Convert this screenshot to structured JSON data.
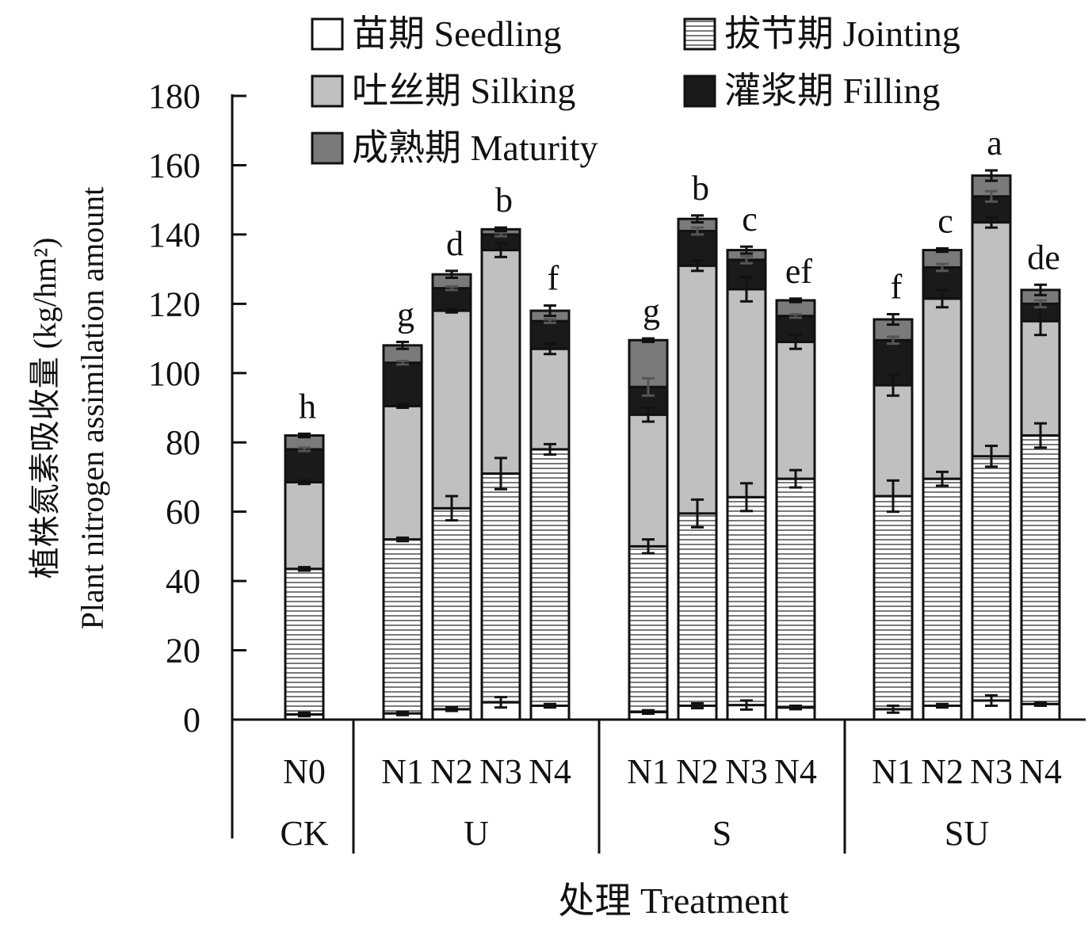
{
  "chart_data": {
    "type": "bar",
    "stacked": true,
    "ylabel_cn": "植株氮素吸收量 (kg/hm²)",
    "ylabel_en": "Plant nitrogen assimilation amount",
    "xlabel": "处理 Treatment",
    "ylim": [
      0,
      180
    ],
    "yticks": [
      "0",
      "20",
      "40",
      "60",
      "80",
      "100",
      "120",
      "140",
      "160",
      "180"
    ],
    "groups": [
      {
        "label": "CK",
        "categories": [
          "N0"
        ]
      },
      {
        "label": "U",
        "categories": [
          "N1",
          "N2",
          "N3",
          "N4"
        ]
      },
      {
        "label": "S",
        "categories": [
          "N1",
          "N2",
          "N3",
          "N4"
        ]
      },
      {
        "label": "SU",
        "categories": [
          "N1",
          "N2",
          "N3",
          "N4"
        ]
      }
    ],
    "legend": [
      {
        "label": "苗期 Seedling",
        "color": "#ffffff",
        "pattern": "none"
      },
      {
        "label": "拔节期 Jointing",
        "color": "#ffffff",
        "pattern": "hlines"
      },
      {
        "label": "吐丝期 Silking",
        "color": "#c0c0c0",
        "pattern": "none"
      },
      {
        "label": "灌浆期 Filling",
        "color": "#1a1a1a",
        "pattern": "none"
      },
      {
        "label": "成熟期 Maturity",
        "color": "#7a7a7a",
        "pattern": "none"
      }
    ],
    "series": [
      {
        "name": "Seedling",
        "values": [
          1.5,
          1.8,
          3.0,
          5.0,
          4.0,
          2.2,
          4.0,
          4.2,
          3.5,
          3.0,
          4.0,
          5.5,
          4.5
        ]
      },
      {
        "name": "Jointing",
        "values": [
          42.0,
          50.2,
          58.0,
          66.0,
          74.0,
          47.8,
          55.5,
          60.0,
          66.0,
          61.5,
          65.5,
          70.5,
          77.5
        ]
      },
      {
        "name": "Silking",
        "values": [
          25.0,
          38.5,
          57.0,
          64.5,
          29.0,
          38.0,
          71.5,
          60.0,
          39.5,
          32.0,
          52.0,
          67.5,
          33.0
        ]
      },
      {
        "name": "Filling",
        "values": [
          9.5,
          12.5,
          6.5,
          4.5,
          8.0,
          8.0,
          10.0,
          8.5,
          7.5,
          13.0,
          9.0,
          7.5,
          5.0
        ]
      },
      {
        "name": "Maturity",
        "values": [
          4.0,
          5.0,
          4.0,
          1.5,
          3.0,
          13.5,
          3.5,
          2.8,
          4.5,
          6.0,
          5.0,
          6.0,
          4.0
        ]
      }
    ],
    "totals": [
      82.0,
      108.0,
      128.5,
      141.5,
      118.0,
      109.5,
      144.5,
      135.5,
      121.0,
      115.5,
      135.5,
      157.0,
      124.0
    ],
    "error_bars": [
      [
        0.5,
        0.5,
        0.5,
        1.5,
        0.5,
        0.5,
        0.7,
        1.3,
        0.5,
        1.0,
        0.5,
        1.5,
        0.5
      ],
      [
        0.5,
        0.5,
        3.5,
        4.5,
        1.5,
        2.0,
        4.0,
        4.0,
        2.5,
        4.5,
        2.0,
        3.0,
        3.5
      ],
      [
        0.5,
        0.5,
        0.5,
        2.0,
        1.5,
        2.0,
        1.5,
        3.5,
        2.0,
        3.0,
        2.5,
        1.5,
        4.0
      ],
      [
        0.5,
        0.5,
        0.5,
        0.5,
        0.5,
        2.5,
        1.0,
        1.0,
        0.5,
        1.0,
        1.0,
        1.5,
        1.0
      ],
      [
        0.5,
        1.0,
        1.0,
        0.5,
        1.5,
        0.5,
        1.0,
        1.0,
        0.5,
        1.5,
        0.5,
        1.5,
        1.5
      ]
    ],
    "significance": [
      "h",
      "g",
      "d",
      "b",
      "f",
      "g",
      "b",
      "c",
      "ef",
      "f",
      "c",
      "a",
      "de"
    ]
  }
}
